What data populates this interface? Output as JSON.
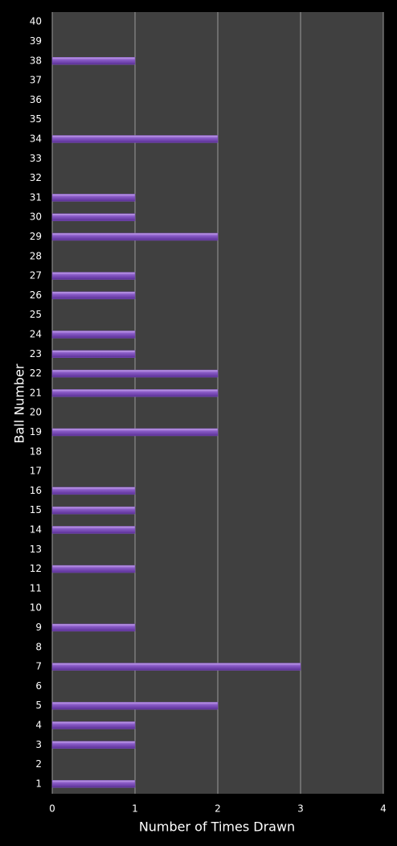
{
  "chart_data": {
    "type": "bar",
    "orientation": "horizontal",
    "x_label": "Number of Times Drawn",
    "y_label": "Ball Number",
    "categories": [
      "1",
      "2",
      "3",
      "4",
      "5",
      "6",
      "7",
      "8",
      "9",
      "10",
      "11",
      "12",
      "13",
      "14",
      "15",
      "16",
      "17",
      "18",
      "19",
      "20",
      "21",
      "22",
      "23",
      "24",
      "25",
      "26",
      "27",
      "28",
      "29",
      "30",
      "31",
      "32",
      "33",
      "34",
      "35",
      "36",
      "37",
      "38",
      "39",
      "40"
    ],
    "values": [
      1,
      0,
      1,
      1,
      2,
      0,
      3,
      0,
      1,
      0,
      0,
      1,
      0,
      1,
      1,
      1,
      0,
      0,
      2,
      0,
      2,
      2,
      1,
      1,
      0,
      1,
      1,
      0,
      2,
      1,
      1,
      0,
      0,
      2,
      0,
      0,
      0,
      1,
      0,
      0
    ],
    "color": "#7b4fb8",
    "xlim": [
      0,
      4
    ],
    "xticks": [
      0,
      1,
      2,
      3,
      4
    ],
    "grid": true
  }
}
